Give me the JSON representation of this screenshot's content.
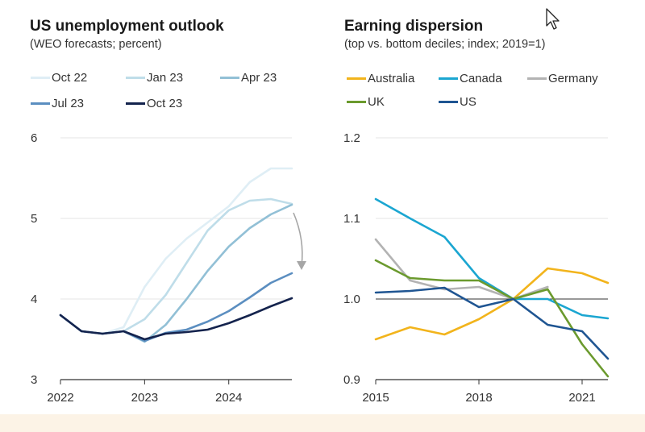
{
  "left_panel": {
    "title": "US unemployment outlook",
    "subtitle": "(WEO forecasts; percent)"
  },
  "right_panel": {
    "title": "Earning dispersion",
    "subtitle": "(top vs. bottom deciles; index; 2019=1)"
  },
  "colors": {
    "oct22": "#dfeef5",
    "jan23": "#bfdde9",
    "apr23": "#92c0d6",
    "jul23": "#5b8ec0",
    "oct23": "#14234d",
    "australia": "#f2b41c",
    "canada": "#1ba6d1",
    "germany": "#b3b3b3",
    "uk": "#6b9a2e",
    "us": "#1f5592",
    "arrow": "#a6a6a6",
    "grid": "#e6e6e6",
    "axis": "#333333"
  },
  "chart_data": [
    {
      "type": "line",
      "title": "US unemployment outlook",
      "subtitle": "(WEO forecasts; percent)",
      "xlim": [
        2022,
        2024.75
      ],
      "ylim": [
        3,
        6
      ],
      "xticks": [
        "2022",
        "2023",
        "2024"
      ],
      "yticks": [
        "3",
        "4",
        "5",
        "6"
      ],
      "grid": true,
      "legend_position": "top",
      "series": [
        {
          "name": "Oct 22",
          "color_key": "oct22",
          "x": [
            2022,
            2022.25,
            2022.5,
            2022.75,
            2023,
            2023.25,
            2023.5,
            2023.75,
            2024,
            2024.25,
            2024.5,
            2024.75
          ],
          "values": [
            3.8,
            3.6,
            3.57,
            3.65,
            4.15,
            4.5,
            4.75,
            4.95,
            5.15,
            5.45,
            5.62,
            5.62
          ]
        },
        {
          "name": "Jan 23",
          "color_key": "jan23",
          "x": [
            2022,
            2022.25,
            2022.5,
            2022.75,
            2023,
            2023.25,
            2023.5,
            2023.75,
            2024,
            2024.25,
            2024.5,
            2024.75
          ],
          "values": [
            3.8,
            3.6,
            3.57,
            3.6,
            3.75,
            4.05,
            4.45,
            4.85,
            5.1,
            5.22,
            5.24,
            5.18
          ]
        },
        {
          "name": "Apr 23",
          "color_key": "apr23",
          "x": [
            2022,
            2022.25,
            2022.5,
            2022.75,
            2023,
            2023.25,
            2023.5,
            2023.75,
            2024,
            2024.25,
            2024.5,
            2024.75
          ],
          "values": [
            3.8,
            3.6,
            3.57,
            3.6,
            3.47,
            3.68,
            4.0,
            4.35,
            4.65,
            4.88,
            5.05,
            5.17
          ]
        },
        {
          "name": "Jul 23",
          "color_key": "jul23",
          "x": [
            2022,
            2022.25,
            2022.5,
            2022.75,
            2023,
            2023.25,
            2023.5,
            2023.75,
            2024,
            2024.25,
            2024.5,
            2024.75
          ],
          "values": [
            3.8,
            3.6,
            3.57,
            3.6,
            3.48,
            3.58,
            3.62,
            3.72,
            3.85,
            4.02,
            4.2,
            4.32
          ]
        },
        {
          "name": "Oct 23",
          "color_key": "oct23",
          "x": [
            2022,
            2022.25,
            2022.5,
            2022.75,
            2023,
            2023.25,
            2023.5,
            2023.75,
            2024,
            2024.25,
            2024.5,
            2024.75
          ],
          "values": [
            3.8,
            3.6,
            3.57,
            3.6,
            3.5,
            3.57,
            3.59,
            3.62,
            3.7,
            3.8,
            3.91,
            4.01
          ]
        }
      ],
      "annotation": {
        "type": "arrow",
        "from": [
          2024.75,
          5.13
        ],
        "to": [
          2024.75,
          4.33
        ]
      }
    },
    {
      "type": "line",
      "title": "Earning dispersion",
      "subtitle": "(top vs. bottom deciles; index; 2019=1)",
      "xlim": [
        2015,
        2021.75
      ],
      "ylim": [
        0.9,
        1.2
      ],
      "xticks": [
        "2015",
        "2018",
        "2021"
      ],
      "yticks": [
        "0.9",
        "1.0",
        "1.1",
        "1.2"
      ],
      "reference_line": 1.0,
      "grid": true,
      "legend_position": "top",
      "series": [
        {
          "name": "Australia",
          "color_key": "australia",
          "x": [
            2015,
            2016,
            2017,
            2018,
            2019,
            2020,
            2021,
            2021.75
          ],
          "values": [
            0.95,
            0.965,
            0.956,
            0.975,
            1.0,
            1.038,
            1.032,
            1.02
          ]
        },
        {
          "name": "Canada",
          "color_key": "canada",
          "x": [
            2015,
            2016,
            2017,
            2018,
            2019,
            2020,
            2021,
            2021.75
          ],
          "values": [
            1.124,
            1.1,
            1.077,
            1.026,
            1.0,
            1.0,
            0.98,
            0.976
          ]
        },
        {
          "name": "Germany",
          "color_key": "germany",
          "x": [
            2015,
            2016,
            2017,
            2018,
            2019,
            2020
          ],
          "values": [
            1.074,
            1.023,
            1.012,
            1.015,
            1.0,
            1.015
          ]
        },
        {
          "name": "UK",
          "color_key": "uk",
          "x": [
            2015,
            2016,
            2017,
            2018,
            2019,
            2020,
            2021,
            2021.75
          ],
          "values": [
            1.048,
            1.026,
            1.023,
            1.023,
            1.0,
            1.012,
            0.944,
            0.904
          ]
        },
        {
          "name": "US",
          "color_key": "us",
          "x": [
            2015,
            2016,
            2017,
            2018,
            2019,
            2020,
            2021,
            2021.75
          ],
          "values": [
            1.008,
            1.01,
            1.014,
            0.99,
            1.0,
            0.968,
            0.96,
            0.926
          ]
        }
      ]
    }
  ]
}
